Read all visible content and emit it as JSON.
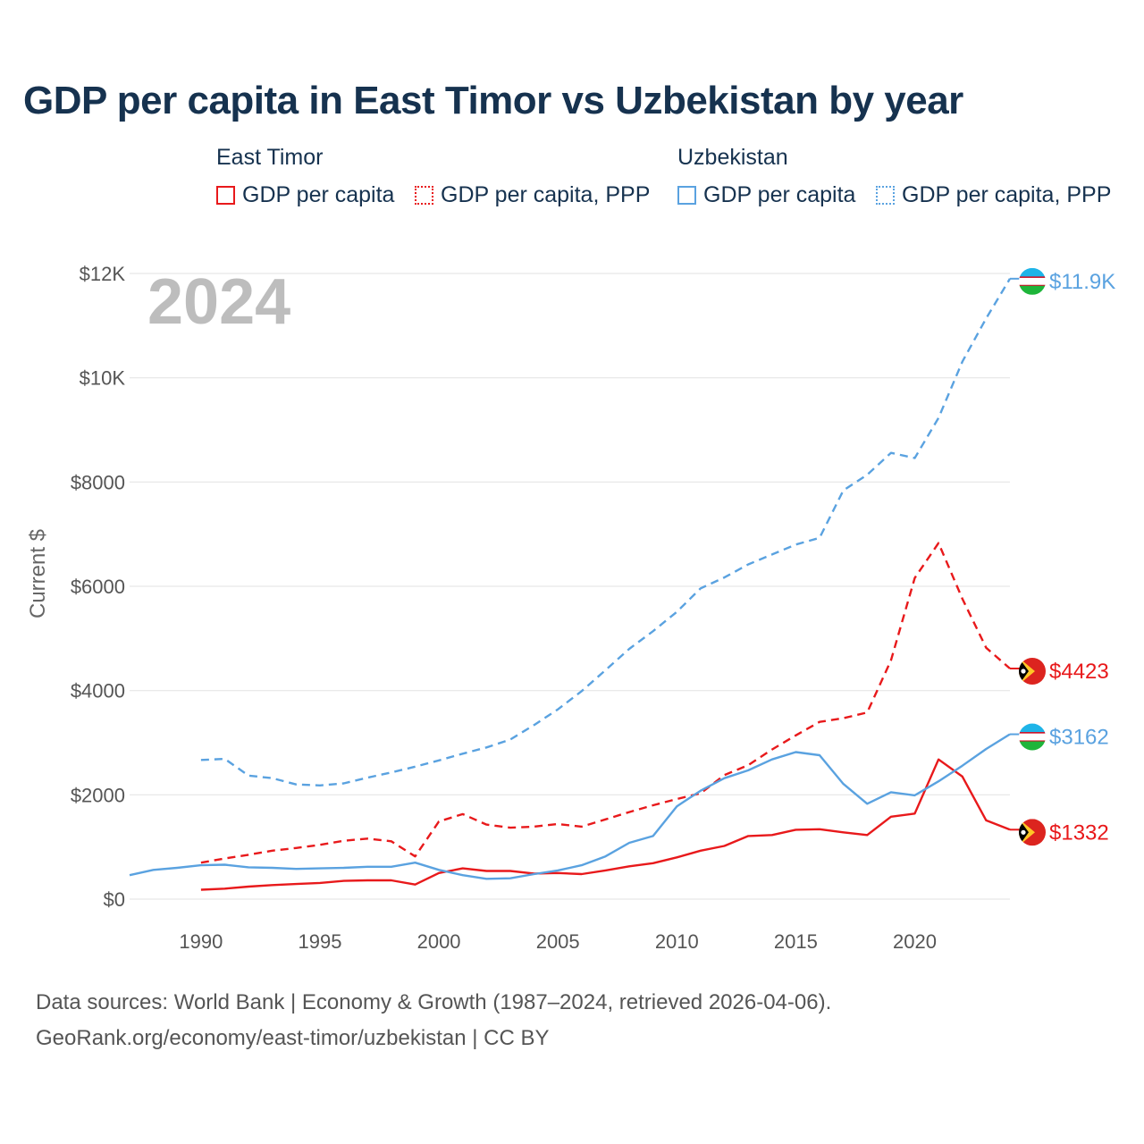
{
  "colors": {
    "east_timor": "#e8191b",
    "uzbekistan": "#5aa2e0",
    "title": "#16324f",
    "grid": "#e6e6e6",
    "year_stamp": "#bdbdbd"
  },
  "chart_data": {
    "type": "line",
    "title": "GDP per capita in East Timor vs Uzbekistan by year",
    "year_stamp": "2024",
    "ylabel": "Current $",
    "xlabel": "",
    "xlim": [
      1987,
      2024
    ],
    "ylim": [
      0,
      12000
    ],
    "yticks": [
      {
        "value": 0,
        "label": "$0"
      },
      {
        "value": 2000,
        "label": "$2000"
      },
      {
        "value": 4000,
        "label": "$4000"
      },
      {
        "value": 6000,
        "label": "$6000"
      },
      {
        "value": 8000,
        "label": "$8000"
      },
      {
        "value": 10000,
        "label": "$10K"
      },
      {
        "value": 12000,
        "label": "$12K"
      }
    ],
    "xticks": [
      {
        "value": 1990,
        "label": "1990"
      },
      {
        "value": 1995,
        "label": "1995"
      },
      {
        "value": 2000,
        "label": "2000"
      },
      {
        "value": 2005,
        "label": "2005"
      },
      {
        "value": 2010,
        "label": "2010"
      },
      {
        "value": 2015,
        "label": "2015"
      },
      {
        "value": 2020,
        "label": "2020"
      }
    ],
    "legend": {
      "groups": [
        {
          "name": "East Timor",
          "items": [
            "GDP per capita",
            "GDP per capita, PPP"
          ]
        },
        {
          "name": "Uzbekistan",
          "items": [
            "GDP per capita",
            "GDP per capita, PPP"
          ]
        }
      ]
    },
    "series": [
      {
        "name": "East Timor GDP per capita",
        "country": "east_timor",
        "dash": "solid",
        "end_label": "$1332",
        "x": [
          1990,
          1991,
          1992,
          1993,
          1994,
          1995,
          1996,
          1997,
          1998,
          1999,
          2000,
          2001,
          2002,
          2003,
          2004,
          2005,
          2006,
          2007,
          2008,
          2009,
          2010,
          2011,
          2012,
          2013,
          2014,
          2015,
          2016,
          2017,
          2018,
          2019,
          2020,
          2021,
          2022,
          2023,
          2024
        ],
        "values": [
          180,
          200,
          240,
          270,
          290,
          310,
          350,
          360,
          360,
          280,
          500,
          590,
          540,
          540,
          490,
          500,
          480,
          550,
          630,
          690,
          800,
          930,
          1020,
          1210,
          1230,
          1330,
          1340,
          1280,
          1230,
          1580,
          1640,
          2680,
          2350,
          1510,
          1332
        ]
      },
      {
        "name": "East Timor GDP per capita, PPP",
        "country": "east_timor",
        "dash": "dashed",
        "end_label": "$4423",
        "x": [
          1990,
          1991,
          1992,
          1993,
          1994,
          1995,
          1996,
          1997,
          1998,
          1999,
          2000,
          2001,
          2002,
          2003,
          2004,
          2005,
          2006,
          2007,
          2008,
          2009,
          2010,
          2011,
          2012,
          2013,
          2014,
          2015,
          2016,
          2017,
          2018,
          2019,
          2020,
          2021,
          2022,
          2023,
          2024
        ],
        "values": [
          700,
          780,
          850,
          930,
          980,
          1040,
          1120,
          1160,
          1110,
          820,
          1490,
          1630,
          1430,
          1370,
          1390,
          1440,
          1390,
          1530,
          1670,
          1800,
          1920,
          2030,
          2380,
          2570,
          2870,
          3140,
          3400,
          3470,
          3580,
          4580,
          6160,
          6830,
          5760,
          4820,
          4423
        ]
      },
      {
        "name": "Uzbekistan GDP per capita",
        "country": "uzbekistan",
        "dash": "solid",
        "end_label": "$3162",
        "x": [
          1987,
          1988,
          1989,
          1990,
          1991,
          1992,
          1993,
          1994,
          1995,
          1996,
          1997,
          1998,
          1999,
          2000,
          2001,
          2002,
          2003,
          2004,
          2005,
          2006,
          2007,
          2008,
          2009,
          2010,
          2011,
          2012,
          2013,
          2014,
          2015,
          2016,
          2017,
          2018,
          2019,
          2020,
          2021,
          2022,
          2023,
          2024
        ],
        "values": [
          460,
          560,
          600,
          650,
          660,
          610,
          600,
          580,
          590,
          600,
          620,
          620,
          700,
          560,
          460,
          390,
          400,
          480,
          550,
          650,
          820,
          1080,
          1210,
          1780,
          2080,
          2320,
          2470,
          2680,
          2820,
          2760,
          2210,
          1830,
          2050,
          1990,
          2260,
          2560,
          2880,
          3162
        ]
      },
      {
        "name": "Uzbekistan GDP per capita, PPP",
        "country": "uzbekistan",
        "dash": "dashed",
        "end_label": "$11.9K",
        "x": [
          1990,
          1991,
          1992,
          1993,
          1994,
          1995,
          1996,
          1997,
          1998,
          1999,
          2000,
          2001,
          2002,
          2003,
          2004,
          2005,
          2006,
          2007,
          2008,
          2009,
          2010,
          2011,
          2012,
          2013,
          2014,
          2015,
          2016,
          2017,
          2018,
          2019,
          2020,
          2021,
          2022,
          2023,
          2024
        ],
        "values": [
          2670,
          2690,
          2370,
          2320,
          2200,
          2180,
          2220,
          2330,
          2430,
          2540,
          2660,
          2790,
          2910,
          3060,
          3340,
          3640,
          3990,
          4390,
          4800,
          5140,
          5510,
          5960,
          6170,
          6420,
          6610,
          6800,
          6930,
          7840,
          8140,
          8560,
          8460,
          9230,
          10310,
          11140,
          11900
        ]
      }
    ]
  },
  "footer": {
    "line1": "Data sources: World Bank | Economy & Growth (1987–2024, retrieved 2026-04-06).",
    "line2": "GeoRank.org/economy/east-timor/uzbekistan | CC BY"
  }
}
